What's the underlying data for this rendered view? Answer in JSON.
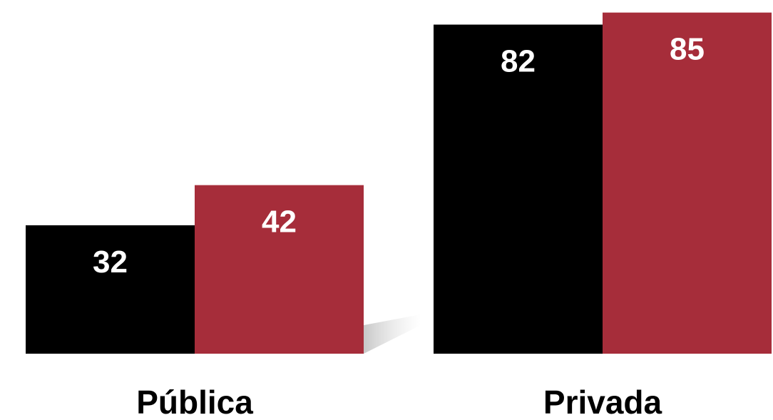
{
  "chart_data": {
    "type": "bar",
    "categories": [
      "Pública",
      "Privada"
    ],
    "series": [
      {
        "values": [
          32,
          82
        ],
        "color": "#000000"
      },
      {
        "values": [
          42,
          85
        ],
        "color": "#a62d3a"
      }
    ],
    "ylim": [
      0,
      86
    ],
    "grid": false,
    "legend": "none",
    "data_labels": true
  }
}
